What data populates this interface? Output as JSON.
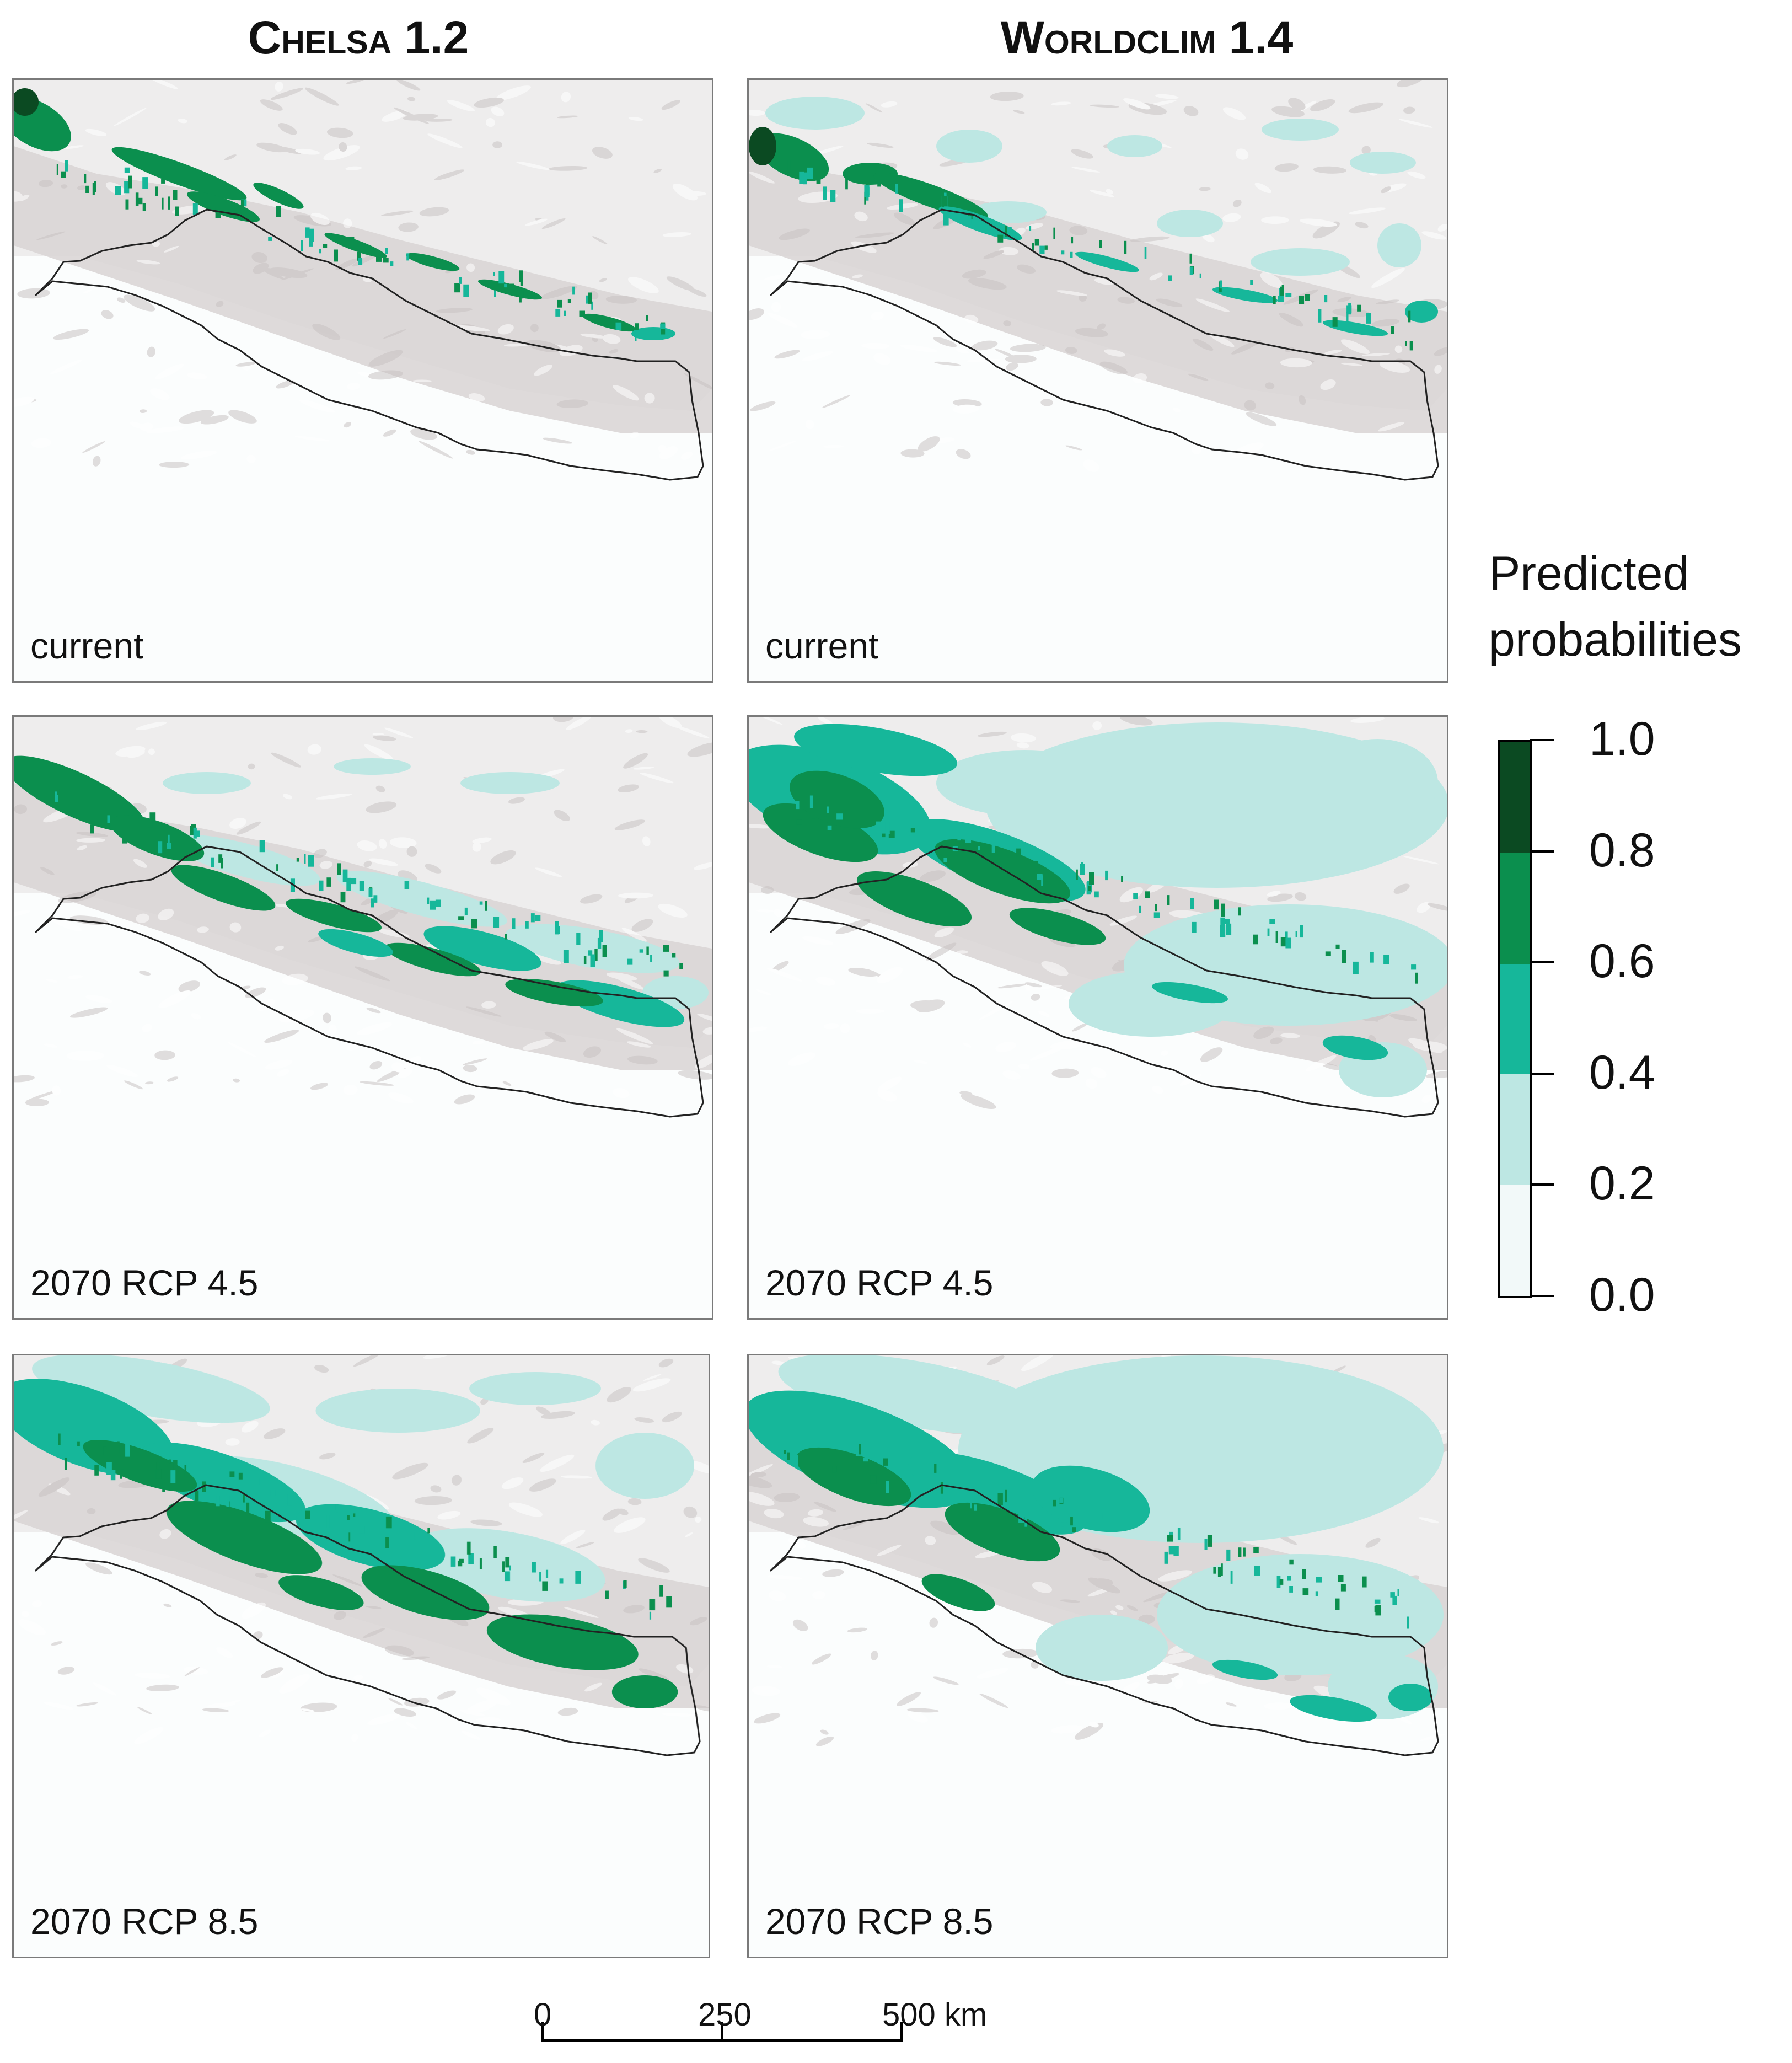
{
  "headers": {
    "left": "Chelsa 1.2",
    "right": "Worldclim 1.4"
  },
  "panels": [
    {
      "label": "current",
      "dataset": "Chelsa 1.2",
      "scenario": "current"
    },
    {
      "label": "current",
      "dataset": "Worldclim 1.4",
      "scenario": "current"
    },
    {
      "label": "2070 RCP 4.5",
      "dataset": "Chelsa 1.2",
      "scenario": "2070 RCP 4.5"
    },
    {
      "label": "2070 RCP 4.5",
      "dataset": "Worldclim 1.4",
      "scenario": "2070 RCP 4.5"
    },
    {
      "label": "2070 RCP 8.5",
      "dataset": "Chelsa 1.2",
      "scenario": "2070 RCP 8.5"
    },
    {
      "label": "2070 RCP 8.5",
      "dataset": "Worldclim 1.4",
      "scenario": "2070 RCP 8.5"
    }
  ],
  "legend": {
    "title_line1": "Predicted",
    "title_line2": "probabilities",
    "classes": [
      {
        "min": 0.0,
        "max": 0.2,
        "color": "#f2f9f9"
      },
      {
        "min": 0.2,
        "max": 0.4,
        "color": "#bde7e3"
      },
      {
        "min": 0.4,
        "max": 0.6,
        "color": "#16b79a"
      },
      {
        "min": 0.6,
        "max": 0.8,
        "color": "#0b8f4e"
      },
      {
        "min": 0.8,
        "max": 1.0,
        "color": "#0b4a22"
      }
    ],
    "labels": [
      "1.0",
      "0.8",
      "0.6",
      "0.4",
      "0.2",
      "0.0"
    ]
  },
  "scale_bar": {
    "labels": [
      "0",
      "250",
      "500 km"
    ]
  },
  "colors": {
    "terrain": "#d8d3d3",
    "border": "#222222"
  }
}
